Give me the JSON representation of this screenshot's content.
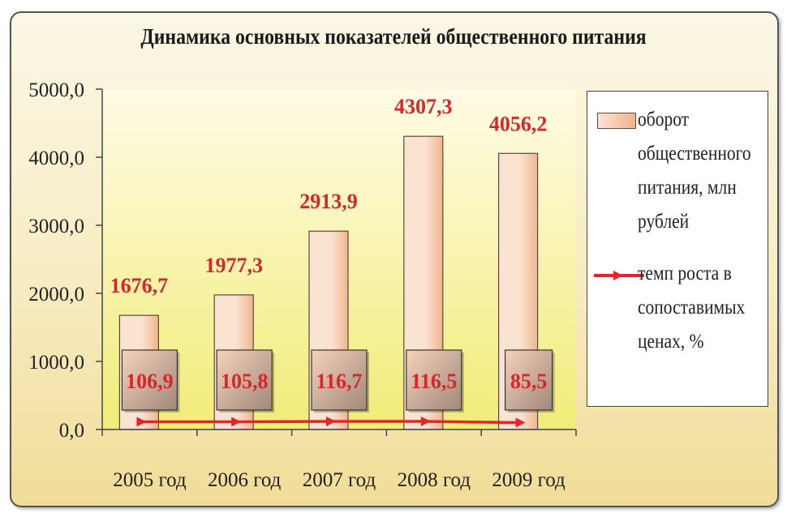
{
  "colors": {
    "bar_light": "#fbe3d2",
    "bar_dark": "#f0b58e",
    "plot_light": "#fffbe6",
    "plot_yellow": "#f2ec78",
    "label_red": "#d8262b",
    "line_red": "#e8242a",
    "box_light": "#f5d2bb",
    "box_dark": "#a0887a"
  },
  "chart_data": {
    "type": "bar",
    "title": "Динамика основных показателей общественного питания",
    "categories": [
      "2005 год",
      "2006 год",
      "2007 год",
      "2008 год",
      "2009 год"
    ],
    "ylim": [
      0,
      5000
    ],
    "yticks": [
      "0,0",
      "1000,0",
      "2000,0",
      "3000,0",
      "4000,0",
      "5000,0"
    ],
    "grid": false,
    "legend_position": "right",
    "series": [
      {
        "name": "оборот общественного питания, млн рублей",
        "type": "bar",
        "values": [
          1676.7,
          1977.3,
          2913.9,
          4307.3,
          4056.2
        ],
        "labels": [
          "1676,7",
          "1977,3",
          "2913,9",
          "4307,3",
          "4056,2"
        ]
      },
      {
        "name": "темп роста в сопоставимых ценах, %",
        "type": "line",
        "values": [
          106.9,
          105.8,
          116.7,
          116.5,
          85.5
        ],
        "labels": [
          "106,9",
          "105,8",
          "116,7",
          "116,5",
          "85,5"
        ]
      }
    ]
  },
  "legend": {
    "bar_text": "оборот\nобщественного\nпитания, млн\nрублей",
    "line_text": "темп роста в\nсопоставимых\nценах, %"
  }
}
